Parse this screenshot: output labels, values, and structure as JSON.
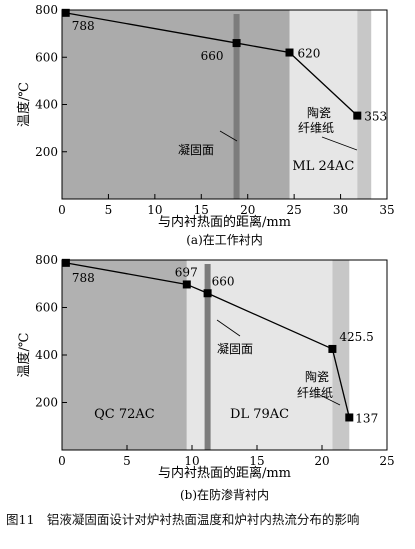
{
  "chart_data": [
    {
      "type": "line",
      "panel_caption": "(a)在工作衬内",
      "xlabel": "与内衬热面的距离/mm",
      "ylabel": "温度/℃",
      "xlim": [
        0,
        35
      ],
      "ylim": [
        0,
        800
      ],
      "xticks": [
        "0",
        "5",
        "10",
        "15",
        "20",
        "25",
        "30",
        "35"
      ],
      "yticks": [
        "200",
        "400",
        "600",
        "800"
      ],
      "series": [
        {
          "x": [
            0.4,
            18.8,
            24.5,
            31.8
          ],
          "y": [
            788,
            660,
            620,
            353
          ]
        }
      ],
      "point_labels": [
        "788",
        "660",
        "620",
        "353"
      ],
      "regions": [
        {
          "x": [
            0,
            24.5
          ],
          "label": "",
          "color": "#ababab"
        },
        {
          "x": [
            24.5,
            31.8
          ],
          "label": "ML 24AC",
          "color": "#e6e6e6"
        },
        {
          "x": [
            31.8,
            33.3
          ],
          "label": "",
          "color": "#c7c7c7"
        }
      ],
      "solidification_line_x": 18.8,
      "annotations": [
        "凝固面",
        "陶瓷",
        "纤维纸"
      ]
    },
    {
      "type": "line",
      "panel_caption": "(b)在防渗背衬内",
      "xlabel": "与内衬热面的距离/mm",
      "ylabel": "温度/℃",
      "xlim": [
        0,
        25
      ],
      "ylim": [
        0,
        800
      ],
      "xticks": [
        "0",
        "5",
        "10",
        "15",
        "20",
        "25"
      ],
      "yticks": [
        "200",
        "400",
        "600",
        "800"
      ],
      "series": [
        {
          "x": [
            0.3,
            9.6,
            11.2,
            20.8,
            22.1
          ],
          "y": [
            788,
            697,
            660,
            425.5,
            137
          ]
        }
      ],
      "point_labels": [
        "788",
        "697",
        "660",
        "425.5",
        "137"
      ],
      "regions": [
        {
          "x": [
            0,
            9.6
          ],
          "label": "QC 72AC",
          "color": "#b1b1b1"
        },
        {
          "x": [
            9.6,
            20.8
          ],
          "label": "DL 79AC",
          "color": "#e6e6e6"
        },
        {
          "x": [
            20.8,
            22.1
          ],
          "label": "",
          "color": "#c7c7c7"
        }
      ],
      "solidification_line_x": 11.2,
      "annotations": [
        "凝固面",
        "陶瓷",
        "纤维纸"
      ]
    }
  ],
  "figure_caption": "图11　铝液凝固面设计对炉衬热面温度和炉衬内热流分布的影响"
}
